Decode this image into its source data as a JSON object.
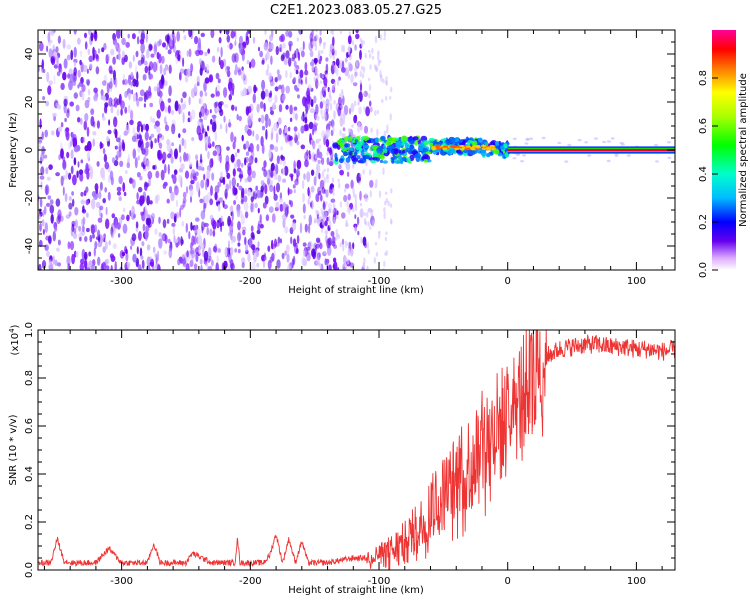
{
  "title": "C2E1.2023.083.05.27.G25",
  "chart_data": [
    {
      "type": "heatmap",
      "xlabel": "Height of straight line (km)",
      "ylabel": "Frequency (Hz)",
      "xlim": [
        -365,
        130
      ],
      "ylim": [
        -50,
        50
      ],
      "x_ticks": [
        -300,
        -200,
        -100,
        0,
        100
      ],
      "y_ticks": [
        -40,
        -20,
        0,
        20,
        40
      ],
      "x_tick_labels": [
        "-300",
        "-200",
        "-100",
        "0",
        "100"
      ],
      "y_tick_labels": [
        "-40",
        "-20",
        "0",
        "20",
        "40"
      ],
      "colorbar": {
        "label": "Normalized spectral amplitude",
        "range": [
          0,
          1
        ],
        "ticks": [
          0,
          0.2,
          0.4,
          0.6,
          0.8
        ],
        "tick_labels": [
          "0.0",
          "0.2",
          "0.4",
          "0.6",
          "0.8"
        ]
      },
      "grid": false
    },
    {
      "type": "line",
      "xlabel": "Height of straight line (km)",
      "ylabel": "SNR (10 * v/v)",
      "y_multiplier": "(x10",
      "y_multiplier_exp": "4",
      "y_multiplier_close": ")",
      "xlim": [
        -365,
        130
      ],
      "ylim": [
        0,
        1.0
      ],
      "x_ticks": [
        -300,
        -200,
        -100,
        0,
        100
      ],
      "y_ticks": [
        0,
        0.2,
        0.4,
        0.6,
        0.8,
        1.0
      ],
      "x_tick_labels": [
        "-300",
        "-200",
        "-100",
        "0",
        "100"
      ],
      "y_tick_labels": [
        "0.0",
        "0.2",
        "0.4",
        "0.6",
        "0.8",
        "1.0"
      ],
      "color": "#ee3333",
      "series": [
        {
          "x": [
            -365,
            -355,
            -350,
            -345,
            -340,
            -320,
            -310,
            -300,
            -280,
            -275,
            -270,
            -250,
            -245,
            -230,
            -212,
            -210,
            -208,
            -190,
            -185,
            -180,
            -175,
            -170,
            -165,
            -160,
            -155,
            -150,
            -140,
            -130,
            -120,
            -110,
            -100,
            -90,
            -80,
            -70,
            -60,
            -50,
            -40,
            -30,
            -20,
            -10,
            0,
            5,
            10,
            15,
            20,
            25,
            30,
            40,
            50,
            60,
            70,
            80,
            90,
            100,
            110,
            120,
            130
          ],
          "y": [
            0.03,
            0.03,
            0.13,
            0.04,
            0.03,
            0.03,
            0.09,
            0.03,
            0.03,
            0.11,
            0.03,
            0.03,
            0.07,
            0.03,
            0.03,
            0.13,
            0.03,
            0.03,
            0.06,
            0.15,
            0.03,
            0.13,
            0.03,
            0.12,
            0.03,
            0.03,
            0.03,
            0.04,
            0.05,
            0.05,
            0.06,
            0.08,
            0.11,
            0.17,
            0.25,
            0.32,
            0.38,
            0.45,
            0.52,
            0.58,
            0.63,
            0.68,
            0.72,
            0.78,
            0.82,
            0.86,
            0.89,
            0.92,
            0.93,
            0.94,
            0.94,
            0.93,
            0.93,
            0.92,
            0.92,
            0.91,
            0.92
          ]
        }
      ]
    }
  ]
}
